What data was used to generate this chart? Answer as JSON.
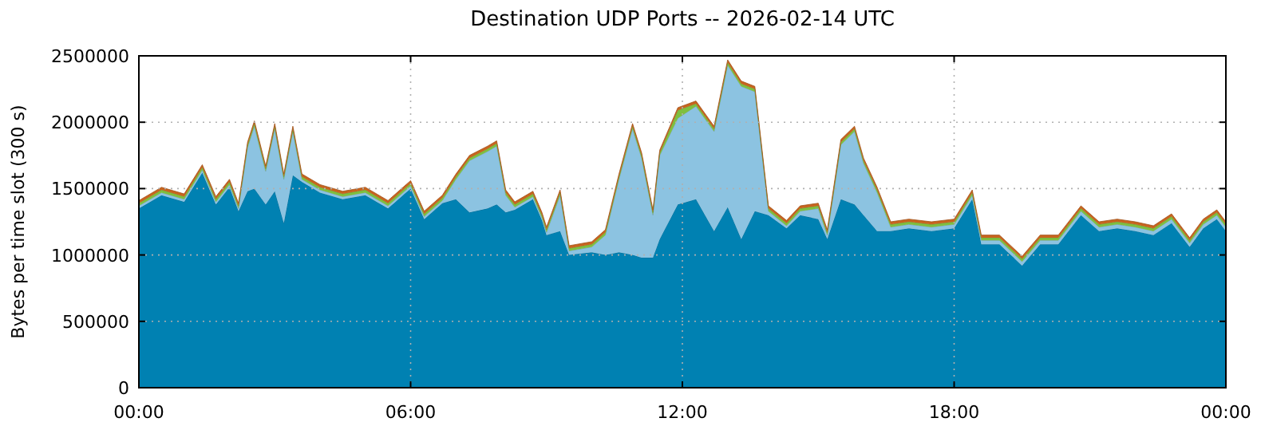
{
  "chart_data": {
    "type": "area",
    "stacked": true,
    "title": "Destination UDP Ports -- 2026-02-14 UTC",
    "ylabel": "Bytes per time slot (300 s)",
    "x": [
      0,
      0.5,
      1,
      1.4,
      1.7,
      2,
      2.2,
      2.4,
      2.55,
      2.8,
      3,
      3.2,
      3.4,
      3.6,
      4,
      4.5,
      5,
      5.5,
      6,
      6.3,
      6.7,
      7,
      7.3,
      7.7,
      7.9,
      8.1,
      8.3,
      8.7,
      8.9,
      9,
      9.3,
      9.5,
      10,
      10.3,
      10.6,
      10.9,
      11.1,
      11.35,
      11.5,
      11.9,
      12.3,
      12.7,
      13,
      13.3,
      13.6,
      13.9,
      14.3,
      14.6,
      15,
      15.2,
      15.5,
      15.8,
      16,
      16.3,
      16.6,
      17,
      17.5,
      18,
      18.4,
      18.6,
      19,
      19.5,
      19.9,
      20.3,
      20.8,
      21.2,
      21.6,
      22,
      22.4,
      22.8,
      23.2,
      23.5,
      23.8,
      24
    ],
    "series": [
      {
        "color": "#0081b2",
        "values": [
          1350000,
          1450000,
          1400000,
          1620000,
          1380000,
          1510000,
          1330000,
          1480000,
          1500000,
          1380000,
          1480000,
          1240000,
          1600000,
          1550000,
          1470000,
          1420000,
          1450000,
          1350000,
          1500000,
          1270000,
          1390000,
          1420000,
          1320000,
          1350000,
          1380000,
          1320000,
          1340000,
          1420000,
          1260000,
          1150000,
          1180000,
          1000000,
          1020000,
          1000000,
          1020000,
          1000000,
          980000,
          980000,
          1120000,
          1380000,
          1420000,
          1180000,
          1360000,
          1120000,
          1330000,
          1300000,
          1200000,
          1300000,
          1270000,
          1120000,
          1420000,
          1380000,
          1300000,
          1180000,
          1180000,
          1200000,
          1180000,
          1200000,
          1420000,
          1080000,
          1080000,
          920000,
          1080000,
          1080000,
          1300000,
          1180000,
          1200000,
          1180000,
          1150000,
          1240000,
          1060000,
          1200000,
          1270000,
          1180000
        ]
      },
      {
        "color": "#8cc3e1",
        "values": [
          20000,
          20000,
          20000,
          20000,
          20000,
          20000,
          20000,
          330000,
          470000,
          250000,
          470000,
          330000,
          330000,
          20000,
          20000,
          20000,
          20000,
          20000,
          20000,
          20000,
          20000,
          150000,
          390000,
          430000,
          440000,
          130000,
          20000,
          20000,
          20000,
          20000,
          270000,
          30000,
          40000,
          150000,
          550000,
          950000,
          750000,
          320000,
          630000,
          650000,
          700000,
          750000,
          1070000,
          1150000,
          900000,
          30000,
          20000,
          30000,
          80000,
          30000,
          410000,
          550000,
          390000,
          290000,
          30000,
          30000,
          30000,
          30000,
          30000,
          30000,
          30000,
          30000,
          30000,
          30000,
          30000,
          30000,
          30000,
          30000,
          30000,
          30000,
          30000,
          30000,
          30000,
          30000
        ]
      },
      {
        "color": "#7fbf3f",
        "values": [
          20000,
          20000,
          20000,
          20000,
          20000,
          20000,
          20000,
          20000,
          20000,
          20000,
          20000,
          20000,
          20000,
          20000,
          20000,
          20000,
          20000,
          20000,
          20000,
          20000,
          20000,
          20000,
          20000,
          20000,
          20000,
          20000,
          20000,
          20000,
          20000,
          20000,
          20000,
          20000,
          20000,
          20000,
          20000,
          20000,
          20000,
          20000,
          20000,
          60000,
          20000,
          20000,
          20000,
          20000,
          20000,
          20000,
          20000,
          20000,
          20000,
          20000,
          20000,
          20000,
          20000,
          20000,
          20000,
          20000,
          20000,
          20000,
          20000,
          20000,
          20000,
          20000,
          20000,
          20000,
          20000,
          20000,
          20000,
          20000,
          20000,
          20000,
          20000,
          20000,
          20000,
          20000
        ]
      },
      {
        "color": "#c8641e",
        "values": [
          20000,
          20000,
          20000,
          20000,
          20000,
          20000,
          20000,
          20000,
          20000,
          20000,
          20000,
          20000,
          20000,
          20000,
          20000,
          20000,
          20000,
          20000,
          20000,
          20000,
          20000,
          20000,
          20000,
          20000,
          20000,
          20000,
          20000,
          20000,
          20000,
          20000,
          20000,
          20000,
          20000,
          20000,
          20000,
          20000,
          20000,
          20000,
          20000,
          20000,
          20000,
          20000,
          20000,
          20000,
          20000,
          20000,
          20000,
          20000,
          20000,
          20000,
          20000,
          20000,
          20000,
          20000,
          20000,
          20000,
          20000,
          20000,
          20000,
          20000,
          20000,
          20000,
          20000,
          20000,
          20000,
          20000,
          20000,
          20000,
          20000,
          20000,
          20000,
          20000,
          20000,
          20000
        ]
      }
    ],
    "xlim": [
      0,
      24
    ],
    "xticks": [
      {
        "value": 0,
        "label": "00:00"
      },
      {
        "value": 6,
        "label": "06:00"
      },
      {
        "value": 12,
        "label": "12:00"
      },
      {
        "value": 18,
        "label": "18:00"
      },
      {
        "value": 24,
        "label": "00:00"
      }
    ],
    "ylim": [
      0,
      2500000
    ],
    "yticks": [
      0,
      500000,
      1000000,
      1500000,
      2000000,
      2500000
    ],
    "grid": true
  }
}
